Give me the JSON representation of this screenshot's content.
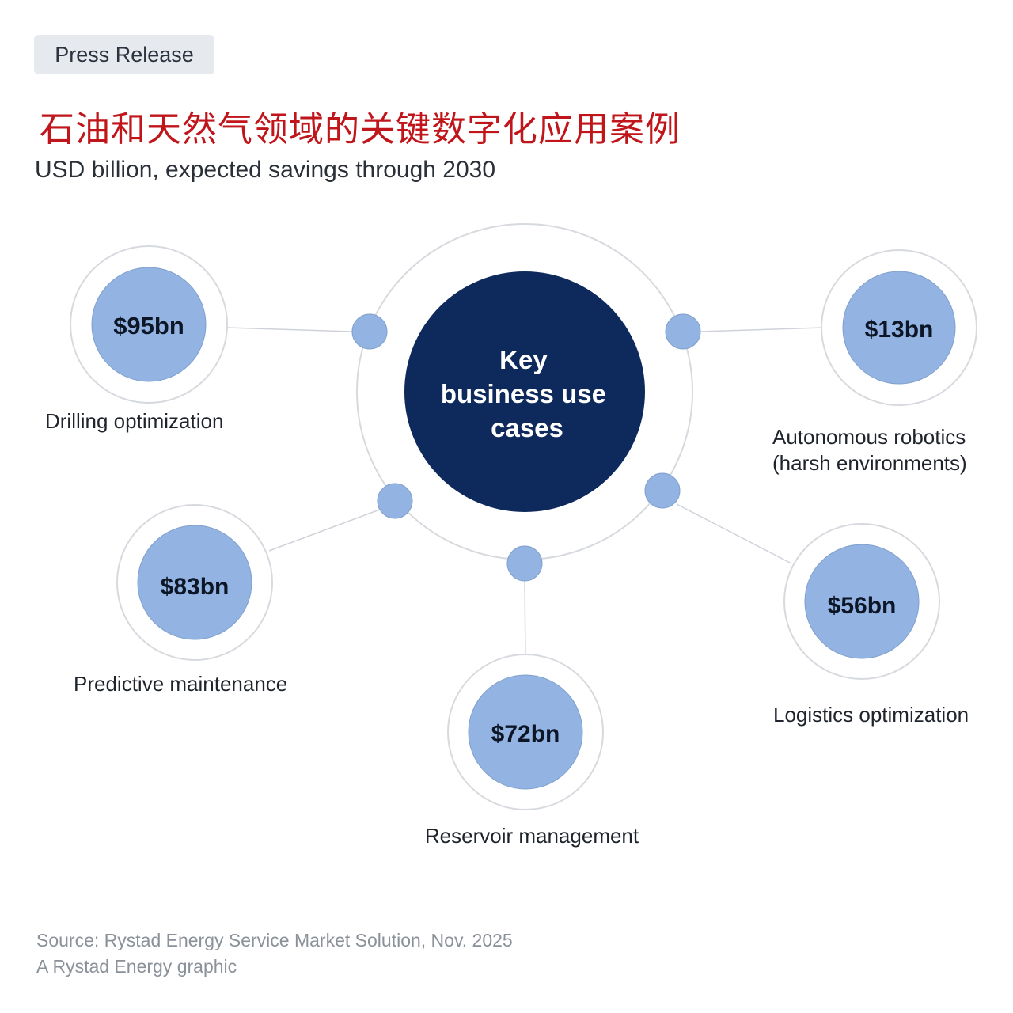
{
  "badge": {
    "label": "Press Release"
  },
  "title": "石油和天然气领域的关键数字化应用案例",
  "subtitle": "USD billion, expected savings through 2030",
  "center": {
    "lines": [
      "Key",
      "business use",
      "cases"
    ]
  },
  "nodes": [
    {
      "id": "drilling",
      "value": "$95bn",
      "label": [
        "Drilling optimization"
      ]
    },
    {
      "id": "robotics",
      "value": "$13bn",
      "label": [
        "Autonomous robotics",
        "(harsh environments)"
      ]
    },
    {
      "id": "maintenance",
      "value": "$83bn",
      "label": [
        "Predictive maintenance"
      ]
    },
    {
      "id": "reservoir",
      "value": "$72bn",
      "label": [
        "Reservoir management"
      ]
    },
    {
      "id": "logistics",
      "value": "$56bn",
      "label": [
        "Logistics optimization"
      ]
    }
  ],
  "source": {
    "line1": "Source: Rystad Energy Service Market Solution, Nov. 2025",
    "line2": "A Rystad Energy graphic"
  },
  "colors": {
    "navy": "#0e2a5c",
    "node_fill": "#93b4e2",
    "node_stroke": "#7f9fcc",
    "ring": "#d6d9de",
    "connector": "#cfd3d9",
    "title_red": "#c0151a"
  }
}
